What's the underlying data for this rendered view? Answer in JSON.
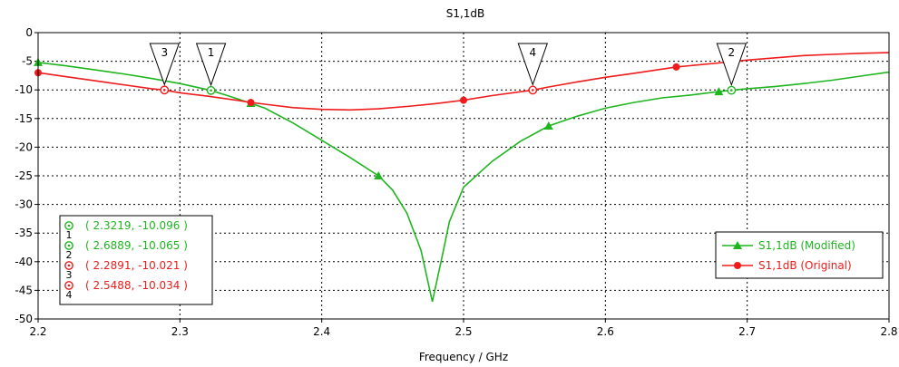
{
  "chart_data": {
    "type": "line",
    "title": "S1,1dB",
    "xlabel": "Frequency / GHz",
    "ylabel": "",
    "xlim": [
      2.2,
      2.8
    ],
    "ylim": [
      -50,
      0
    ],
    "xticks": [
      2.2,
      2.3,
      2.4,
      2.5,
      2.6,
      2.7,
      2.8
    ],
    "xtick_labels": [
      "2.2",
      "2.3",
      "2.4",
      "2.5",
      "2.6",
      "2.7",
      "2.8"
    ],
    "yticks": [
      0,
      -5,
      -10,
      -15,
      -20,
      -25,
      -30,
      -35,
      -40,
      -45,
      -50
    ],
    "ytick_labels": [
      "0",
      "-5",
      "-10",
      "-15",
      "-20",
      "-25",
      "-30",
      "-35",
      "-40",
      "-45",
      "-50"
    ],
    "grid": true,
    "grid_style": "dotted",
    "series": [
      {
        "name": "S1,1dB (Modified)",
        "color": "#1fb51f",
        "marker": "triangle",
        "x": [
          2.2,
          2.22,
          2.24,
          2.26,
          2.28,
          2.3,
          2.3219,
          2.34,
          2.36,
          2.38,
          2.4,
          2.42,
          2.44,
          2.45,
          2.46,
          2.47,
          2.478,
          2.485,
          2.49,
          2.5,
          2.52,
          2.54,
          2.56,
          2.58,
          2.6,
          2.62,
          2.64,
          2.66,
          2.68,
          2.6889,
          2.7,
          2.72,
          2.74,
          2.76,
          2.78,
          2.8
        ],
        "y": [
          -5.2,
          -5.8,
          -6.5,
          -7.2,
          -8.0,
          -8.9,
          -10.096,
          -11.5,
          -13.2,
          -15.8,
          -18.8,
          -21.8,
          -25.0,
          -27.5,
          -31.5,
          -38.0,
          -47.0,
          -39.0,
          -33.0,
          -27.0,
          -22.5,
          -19.0,
          -16.3,
          -14.6,
          -13.2,
          -12.2,
          -11.4,
          -10.9,
          -10.3,
          -10.065,
          -9.8,
          -9.4,
          -8.9,
          -8.3,
          -7.6,
          -6.9
        ],
        "marker_x": [
          2.2,
          2.35,
          2.44,
          2.56,
          2.68
        ]
      },
      {
        "name": "S1,1dB (Original)",
        "color": "#ee1c1c",
        "marker": "circle",
        "x": [
          2.2,
          2.22,
          2.24,
          2.26,
          2.28,
          2.2891,
          2.3,
          2.32,
          2.34,
          2.35,
          2.36,
          2.38,
          2.4,
          2.42,
          2.44,
          2.46,
          2.48,
          2.5,
          2.52,
          2.5488,
          2.56,
          2.58,
          2.6,
          2.62,
          2.65,
          2.68,
          2.7,
          2.72,
          2.74,
          2.76,
          2.78,
          2.8
        ],
        "y": [
          -7.0,
          -7.7,
          -8.4,
          -9.1,
          -9.8,
          -10.021,
          -10.5,
          -11.1,
          -11.8,
          -12.2,
          -12.5,
          -13.1,
          -13.4,
          -13.5,
          -13.3,
          -12.9,
          -12.4,
          -11.8,
          -11.0,
          -10.034,
          -9.5,
          -8.6,
          -7.8,
          -7.1,
          -6.0,
          -5.3,
          -4.8,
          -4.4,
          -4.0,
          -3.8,
          -3.6,
          -3.5
        ],
        "marker_x": [
          2.2,
          2.35,
          2.5,
          2.65
        ]
      }
    ],
    "markers": [
      {
        "id": "1",
        "x": 2.3219,
        "y": -10.096,
        "label": "( 2.3219, -10.096 )",
        "color": "#1fb51f"
      },
      {
        "id": "2",
        "x": 2.6889,
        "y": -10.065,
        "label": "( 2.6889, -10.065 )",
        "color": "#1fb51f"
      },
      {
        "id": "3",
        "x": 2.2891,
        "y": -10.021,
        "label": "( 2.2891, -10.021 )",
        "color": "#ee1c1c"
      },
      {
        "id": "4",
        "x": 2.5488,
        "y": -10.034,
        "label": "( 2.5488, -10.034 )",
        "color": "#ee1c1c"
      }
    ],
    "legend_position": "bottom-right"
  }
}
